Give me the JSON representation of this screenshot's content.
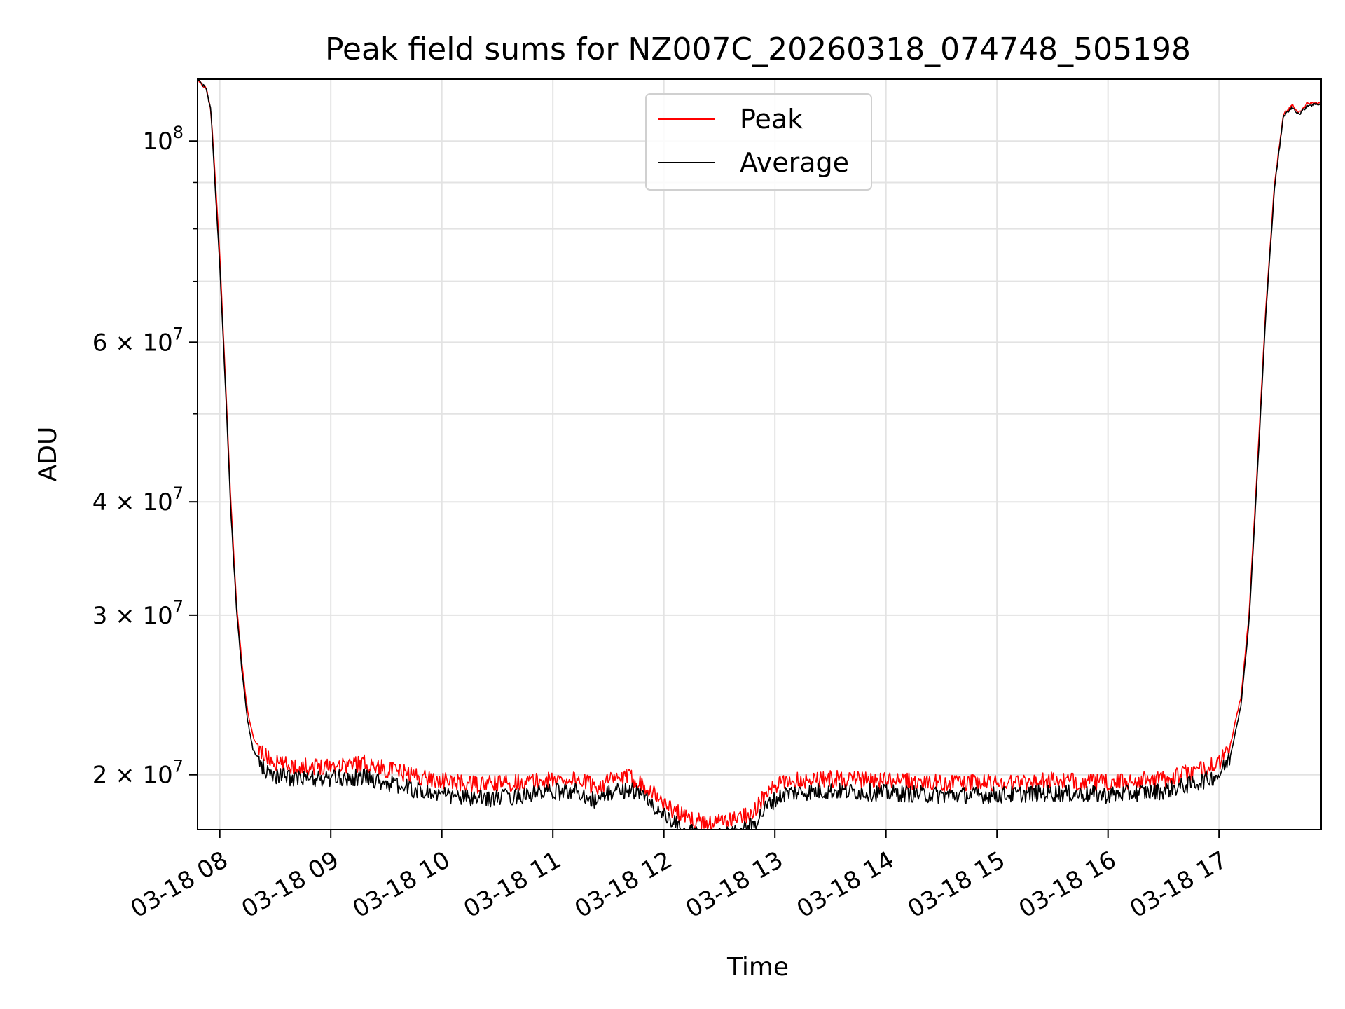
{
  "chart_data": {
    "type": "line",
    "title": "Peak field sums for NZ007C_20260318_074748_505198",
    "xlabel": "Time",
    "ylabel": "ADU",
    "yscale": "log",
    "xlim": [
      7.8,
      17.92
    ],
    "ylim": [
      17400000,
      117000000
    ],
    "grid": true,
    "legend_position": "top-center",
    "x_ticks": [
      {
        "value": 8,
        "label": "03-18 08"
      },
      {
        "value": 9,
        "label": "03-18 09"
      },
      {
        "value": 10,
        "label": "03-18 10"
      },
      {
        "value": 11,
        "label": "03-18 11"
      },
      {
        "value": 12,
        "label": "03-18 12"
      },
      {
        "value": 13,
        "label": "03-18 13"
      },
      {
        "value": 14,
        "label": "03-18 14"
      },
      {
        "value": 15,
        "label": "03-18 15"
      },
      {
        "value": 16,
        "label": "03-18 16"
      },
      {
        "value": 17,
        "label": "03-18 17"
      }
    ],
    "y_major_ticks": [
      {
        "value": 100000000,
        "mantissa": "",
        "base": "10",
        "exp": "8"
      },
      {
        "value": 60000000,
        "mantissa": "6 × ",
        "base": "10",
        "exp": "7"
      },
      {
        "value": 40000000,
        "mantissa": "4 × ",
        "base": "10",
        "exp": "7"
      },
      {
        "value": 30000000,
        "mantissa": "3 × ",
        "base": "10",
        "exp": "7"
      },
      {
        "value": 20000000,
        "mantissa": "2 × ",
        "base": "10",
        "exp": "7"
      }
    ],
    "y_minor_ticks": [
      90000000,
      80000000,
      70000000,
      50000000
    ],
    "series": [
      {
        "name": "Peak",
        "color": "#ff0000",
        "points": [
          [
            7.8,
            117000000
          ],
          [
            7.88,
            114000000
          ],
          [
            7.92,
            108000000
          ],
          [
            7.95,
            95000000
          ],
          [
            8.0,
            75000000
          ],
          [
            8.05,
            55000000
          ],
          [
            8.1,
            40000000
          ],
          [
            8.15,
            31000000
          ],
          [
            8.2,
            26500000
          ],
          [
            8.25,
            23500000
          ],
          [
            8.3,
            22000000
          ],
          [
            8.4,
            21000000
          ],
          [
            8.5,
            20600000
          ],
          [
            8.7,
            20400000
          ],
          [
            9.0,
            20500000
          ],
          [
            9.3,
            20600000
          ],
          [
            9.5,
            20300000
          ],
          [
            9.8,
            19900000
          ],
          [
            10.0,
            19700000
          ],
          [
            10.3,
            19500000
          ],
          [
            10.6,
            19600000
          ],
          [
            10.9,
            19700000
          ],
          [
            11.2,
            19800000
          ],
          [
            11.4,
            19400000
          ],
          [
            11.5,
            19700000
          ],
          [
            11.7,
            19900000
          ],
          [
            11.85,
            19400000
          ],
          [
            12.0,
            18600000
          ],
          [
            12.2,
            17900000
          ],
          [
            12.4,
            17700000
          ],
          [
            12.6,
            17800000
          ],
          [
            12.8,
            18200000
          ],
          [
            12.95,
            19200000
          ],
          [
            13.1,
            19700000
          ],
          [
            13.5,
            19800000
          ],
          [
            14.0,
            19700000
          ],
          [
            14.5,
            19600000
          ],
          [
            15.0,
            19600000
          ],
          [
            15.5,
            19700000
          ],
          [
            16.0,
            19600000
          ],
          [
            16.5,
            19800000
          ],
          [
            16.8,
            20200000
          ],
          [
            17.0,
            20600000
          ],
          [
            17.1,
            21500000
          ],
          [
            17.2,
            24500000
          ],
          [
            17.27,
            30000000
          ],
          [
            17.35,
            45000000
          ],
          [
            17.42,
            65000000
          ],
          [
            17.5,
            90000000
          ],
          [
            17.58,
            107000000
          ],
          [
            17.66,
            109500000
          ],
          [
            17.72,
            107500000
          ],
          [
            17.8,
            110000000
          ],
          [
            17.92,
            110500000
          ]
        ]
      },
      {
        "name": "Average",
        "color": "#000000",
        "points": [
          [
            7.8,
            117000000
          ],
          [
            7.88,
            114000000
          ],
          [
            7.92,
            108000000
          ],
          [
            7.95,
            93000000
          ],
          [
            8.0,
            73000000
          ],
          [
            8.05,
            54000000
          ],
          [
            8.1,
            39000000
          ],
          [
            8.15,
            30500000
          ],
          [
            8.2,
            26000000
          ],
          [
            8.25,
            23000000
          ],
          [
            8.3,
            21300000
          ],
          [
            8.4,
            20300000
          ],
          [
            8.5,
            20000000
          ],
          [
            8.7,
            19800000
          ],
          [
            9.0,
            19800000
          ],
          [
            9.3,
            19900000
          ],
          [
            9.5,
            19600000
          ],
          [
            9.8,
            19200000
          ],
          [
            10.0,
            19000000
          ],
          [
            10.3,
            18800000
          ],
          [
            10.6,
            18900000
          ],
          [
            10.9,
            19100000
          ],
          [
            11.2,
            19200000
          ],
          [
            11.4,
            18700000
          ],
          [
            11.5,
            19100000
          ],
          [
            11.7,
            19300000
          ],
          [
            11.85,
            18800000
          ],
          [
            12.0,
            18000000
          ],
          [
            12.2,
            17300000
          ],
          [
            12.4,
            17100000
          ],
          [
            12.6,
            17200000
          ],
          [
            12.8,
            17600000
          ],
          [
            12.95,
            18600000
          ],
          [
            13.1,
            19100000
          ],
          [
            13.5,
            19200000
          ],
          [
            14.0,
            19100000
          ],
          [
            14.5,
            19000000
          ],
          [
            15.0,
            19000000
          ],
          [
            15.5,
            19100000
          ],
          [
            16.0,
            19000000
          ],
          [
            16.5,
            19200000
          ],
          [
            16.8,
            19600000
          ],
          [
            17.0,
            20000000
          ],
          [
            17.1,
            20900000
          ],
          [
            17.2,
            24000000
          ],
          [
            17.27,
            29500000
          ],
          [
            17.35,
            44000000
          ],
          [
            17.42,
            64000000
          ],
          [
            17.5,
            89000000
          ],
          [
            17.58,
            106500000
          ],
          [
            17.66,
            109000000
          ],
          [
            17.72,
            107000000
          ],
          [
            17.8,
            109500000
          ],
          [
            17.92,
            110000000
          ]
        ]
      }
    ],
    "legend": [
      {
        "label": "Peak",
        "color": "#ff0000"
      },
      {
        "label": "Average",
        "color": "#000000"
      }
    ]
  }
}
